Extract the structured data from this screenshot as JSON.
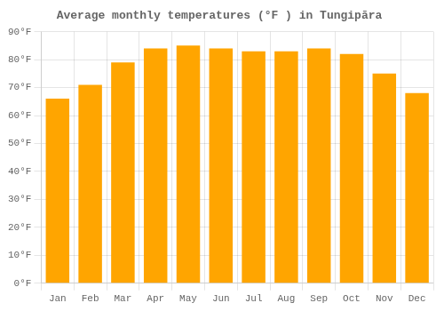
{
  "chart_data": {
    "type": "bar",
    "title": "Average monthly temperatures (°F ) in Tungipāra",
    "categories": [
      "Jan",
      "Feb",
      "Mar",
      "Apr",
      "May",
      "Jun",
      "Jul",
      "Aug",
      "Sep",
      "Oct",
      "Nov",
      "Dec"
    ],
    "values": [
      66,
      71,
      79,
      84,
      85,
      84,
      83,
      83,
      84,
      82,
      75,
      68
    ],
    "color": "#FFA500",
    "ylim": [
      0,
      90
    ],
    "yticks": [
      {
        "value": 0,
        "label": "0°F"
      },
      {
        "value": 10,
        "label": "10°F"
      },
      {
        "value": 20,
        "label": "20°F"
      },
      {
        "value": 30,
        "label": "30°F"
      },
      {
        "value": 40,
        "label": "40°F"
      },
      {
        "value": 50,
        "label": "50°F"
      },
      {
        "value": 60,
        "label": "60°F"
      },
      {
        "value": 70,
        "label": "70°F"
      },
      {
        "value": 80,
        "label": "80°F"
      },
      {
        "value": 90,
        "label": "90°F"
      }
    ],
    "grid": true
  }
}
